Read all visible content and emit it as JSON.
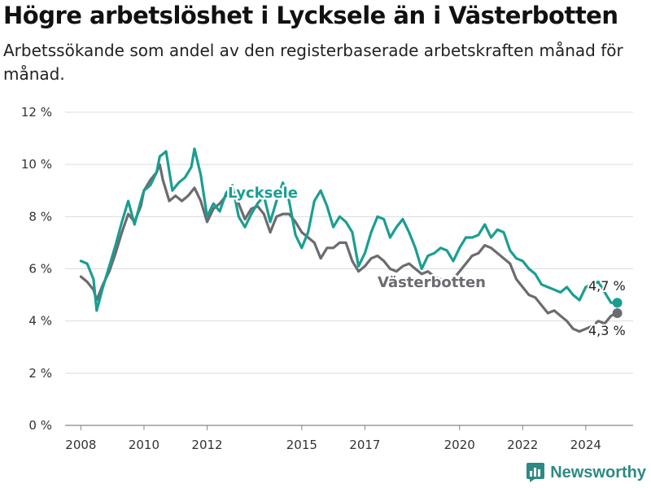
{
  "title": "Högre arbetslöshet i Lycksele än i Västerbotten",
  "subtitle": "Arbetssökande som andel av den registerbaserade arbetskraften månad för månad.",
  "brand": {
    "name": "Newsworthy",
    "color": "#2d8a83"
  },
  "chart_data": {
    "type": "line",
    "ylim": [
      0,
      12
    ],
    "xlim": [
      2007.5,
      2025.5
    ],
    "yticks": [
      0,
      2,
      4,
      6,
      8,
      10,
      12
    ],
    "ytick_labels": [
      "0 %",
      "2 %",
      "4 %",
      "6 %",
      "8 %",
      "10 %",
      "12 %"
    ],
    "xticks": [
      2008,
      2010,
      2012,
      2015,
      2017,
      2020,
      2022,
      2024
    ],
    "xtick_labels": [
      "2008",
      "2010",
      "2012",
      "2015",
      "2017",
      "2020",
      "2022",
      "2024"
    ],
    "grid": true,
    "series": [
      {
        "name": "Västerbotten",
        "color": "#6b6b70",
        "end_label": "4,3 %",
        "points": [
          [
            2008.0,
            5.7
          ],
          [
            2008.2,
            5.5
          ],
          [
            2008.4,
            5.2
          ],
          [
            2008.5,
            4.8
          ],
          [
            2008.7,
            5.4
          ],
          [
            2008.9,
            5.9
          ],
          [
            2009.1,
            6.6
          ],
          [
            2009.3,
            7.4
          ],
          [
            2009.5,
            8.1
          ],
          [
            2009.7,
            7.8
          ],
          [
            2009.9,
            8.4
          ],
          [
            2010.0,
            9.0
          ],
          [
            2010.2,
            9.4
          ],
          [
            2010.4,
            9.7
          ],
          [
            2010.5,
            10.0
          ],
          [
            2010.6,
            9.4
          ],
          [
            2010.8,
            8.6
          ],
          [
            2011.0,
            8.8
          ],
          [
            2011.2,
            8.6
          ],
          [
            2011.4,
            8.8
          ],
          [
            2011.6,
            9.1
          ],
          [
            2011.8,
            8.6
          ],
          [
            2012.0,
            7.8
          ],
          [
            2012.2,
            8.3
          ],
          [
            2012.4,
            8.5
          ],
          [
            2012.6,
            8.8
          ],
          [
            2012.8,
            8.9
          ],
          [
            2013.0,
            8.5
          ],
          [
            2013.2,
            7.9
          ],
          [
            2013.4,
            8.3
          ],
          [
            2013.6,
            8.4
          ],
          [
            2013.8,
            8.1
          ],
          [
            2014.0,
            7.4
          ],
          [
            2014.2,
            8.0
          ],
          [
            2014.4,
            8.1
          ],
          [
            2014.6,
            8.1
          ],
          [
            2014.8,
            7.8
          ],
          [
            2015.0,
            7.4
          ],
          [
            2015.2,
            7.2
          ],
          [
            2015.4,
            7.0
          ],
          [
            2015.6,
            6.4
          ],
          [
            2015.8,
            6.8
          ],
          [
            2016.0,
            6.8
          ],
          [
            2016.2,
            7.0
          ],
          [
            2016.4,
            7.0
          ],
          [
            2016.6,
            6.3
          ],
          [
            2016.8,
            5.9
          ],
          [
            2017.0,
            6.1
          ],
          [
            2017.2,
            6.4
          ],
          [
            2017.4,
            6.5
          ],
          [
            2017.6,
            6.3
          ],
          [
            2017.8,
            6.0
          ],
          [
            2018.0,
            5.9
          ],
          [
            2018.2,
            6.1
          ],
          [
            2018.4,
            6.2
          ],
          [
            2018.6,
            6.0
          ],
          [
            2018.8,
            5.8
          ],
          [
            2019.0,
            5.9
          ],
          [
            2019.2,
            5.7
          ],
          [
            2019.4,
            5.6
          ],
          [
            2019.6,
            5.5
          ],
          [
            2019.8,
            5.6
          ],
          [
            2020.0,
            5.9
          ],
          [
            2020.2,
            6.2
          ],
          [
            2020.4,
            6.5
          ],
          [
            2020.6,
            6.6
          ],
          [
            2020.8,
            6.9
          ],
          [
            2021.0,
            6.8
          ],
          [
            2021.2,
            6.6
          ],
          [
            2021.4,
            6.4
          ],
          [
            2021.6,
            6.2
          ],
          [
            2021.8,
            5.6
          ],
          [
            2022.0,
            5.3
          ],
          [
            2022.2,
            5.0
          ],
          [
            2022.4,
            4.9
          ],
          [
            2022.6,
            4.6
          ],
          [
            2022.8,
            4.3
          ],
          [
            2023.0,
            4.4
          ],
          [
            2023.2,
            4.2
          ],
          [
            2023.4,
            4.0
          ],
          [
            2023.6,
            3.7
          ],
          [
            2023.8,
            3.6
          ],
          [
            2024.0,
            3.7
          ],
          [
            2024.2,
            3.8
          ],
          [
            2024.4,
            4.0
          ],
          [
            2024.6,
            3.9
          ],
          [
            2024.8,
            4.2
          ],
          [
            2025.0,
            4.3
          ]
        ]
      },
      {
        "name": "Lycksele",
        "color": "#1a9e92",
        "end_label": "4,7 %",
        "points": [
          [
            2008.0,
            6.3
          ],
          [
            2008.2,
            6.2
          ],
          [
            2008.4,
            5.6
          ],
          [
            2008.5,
            4.4
          ],
          [
            2008.7,
            5.3
          ],
          [
            2008.9,
            6.1
          ],
          [
            2009.1,
            6.9
          ],
          [
            2009.3,
            7.8
          ],
          [
            2009.5,
            8.6
          ],
          [
            2009.7,
            7.7
          ],
          [
            2009.9,
            8.6
          ],
          [
            2010.0,
            9.0
          ],
          [
            2010.2,
            9.2
          ],
          [
            2010.4,
            9.7
          ],
          [
            2010.5,
            10.3
          ],
          [
            2010.7,
            10.5
          ],
          [
            2010.9,
            9.0
          ],
          [
            2011.1,
            9.3
          ],
          [
            2011.3,
            9.5
          ],
          [
            2011.5,
            9.9
          ],
          [
            2011.6,
            10.6
          ],
          [
            2011.8,
            9.6
          ],
          [
            2012.0,
            8.0
          ],
          [
            2012.2,
            8.5
          ],
          [
            2012.4,
            8.2
          ],
          [
            2012.6,
            8.9
          ],
          [
            2012.8,
            9.2
          ],
          [
            2013.0,
            8.0
          ],
          [
            2013.2,
            7.6
          ],
          [
            2013.4,
            8.1
          ],
          [
            2013.6,
            8.5
          ],
          [
            2013.8,
            8.8
          ],
          [
            2014.0,
            7.8
          ],
          [
            2014.2,
            8.6
          ],
          [
            2014.4,
            9.3
          ],
          [
            2014.6,
            8.6
          ],
          [
            2014.8,
            7.3
          ],
          [
            2015.0,
            6.8
          ],
          [
            2015.2,
            7.4
          ],
          [
            2015.4,
            8.6
          ],
          [
            2015.6,
            9.0
          ],
          [
            2015.8,
            8.4
          ],
          [
            2016.0,
            7.6
          ],
          [
            2016.2,
            8.0
          ],
          [
            2016.4,
            7.8
          ],
          [
            2016.6,
            7.4
          ],
          [
            2016.8,
            6.1
          ],
          [
            2017.0,
            6.6
          ],
          [
            2017.2,
            7.4
          ],
          [
            2017.4,
            8.0
          ],
          [
            2017.6,
            7.9
          ],
          [
            2017.8,
            7.2
          ],
          [
            2018.0,
            7.6
          ],
          [
            2018.2,
            7.9
          ],
          [
            2018.4,
            7.4
          ],
          [
            2018.6,
            6.8
          ],
          [
            2018.8,
            6.0
          ],
          [
            2019.0,
            6.5
          ],
          [
            2019.2,
            6.6
          ],
          [
            2019.4,
            6.8
          ],
          [
            2019.6,
            6.7
          ],
          [
            2019.8,
            6.3
          ],
          [
            2020.0,
            6.8
          ],
          [
            2020.2,
            7.2
          ],
          [
            2020.4,
            7.2
          ],
          [
            2020.6,
            7.3
          ],
          [
            2020.8,
            7.7
          ],
          [
            2021.0,
            7.2
          ],
          [
            2021.2,
            7.5
          ],
          [
            2021.4,
            7.4
          ],
          [
            2021.6,
            6.7
          ],
          [
            2021.8,
            6.4
          ],
          [
            2022.0,
            6.3
          ],
          [
            2022.2,
            6.0
          ],
          [
            2022.4,
            5.8
          ],
          [
            2022.6,
            5.4
          ],
          [
            2022.8,
            5.3
          ],
          [
            2023.0,
            5.2
          ],
          [
            2023.2,
            5.1
          ],
          [
            2023.4,
            5.3
          ],
          [
            2023.6,
            5.0
          ],
          [
            2023.8,
            4.8
          ],
          [
            2024.0,
            5.3
          ],
          [
            2024.2,
            5.4
          ],
          [
            2024.4,
            5.5
          ],
          [
            2024.6,
            5.1
          ],
          [
            2024.8,
            4.7
          ],
          [
            2025.0,
            4.7
          ]
        ]
      }
    ]
  }
}
